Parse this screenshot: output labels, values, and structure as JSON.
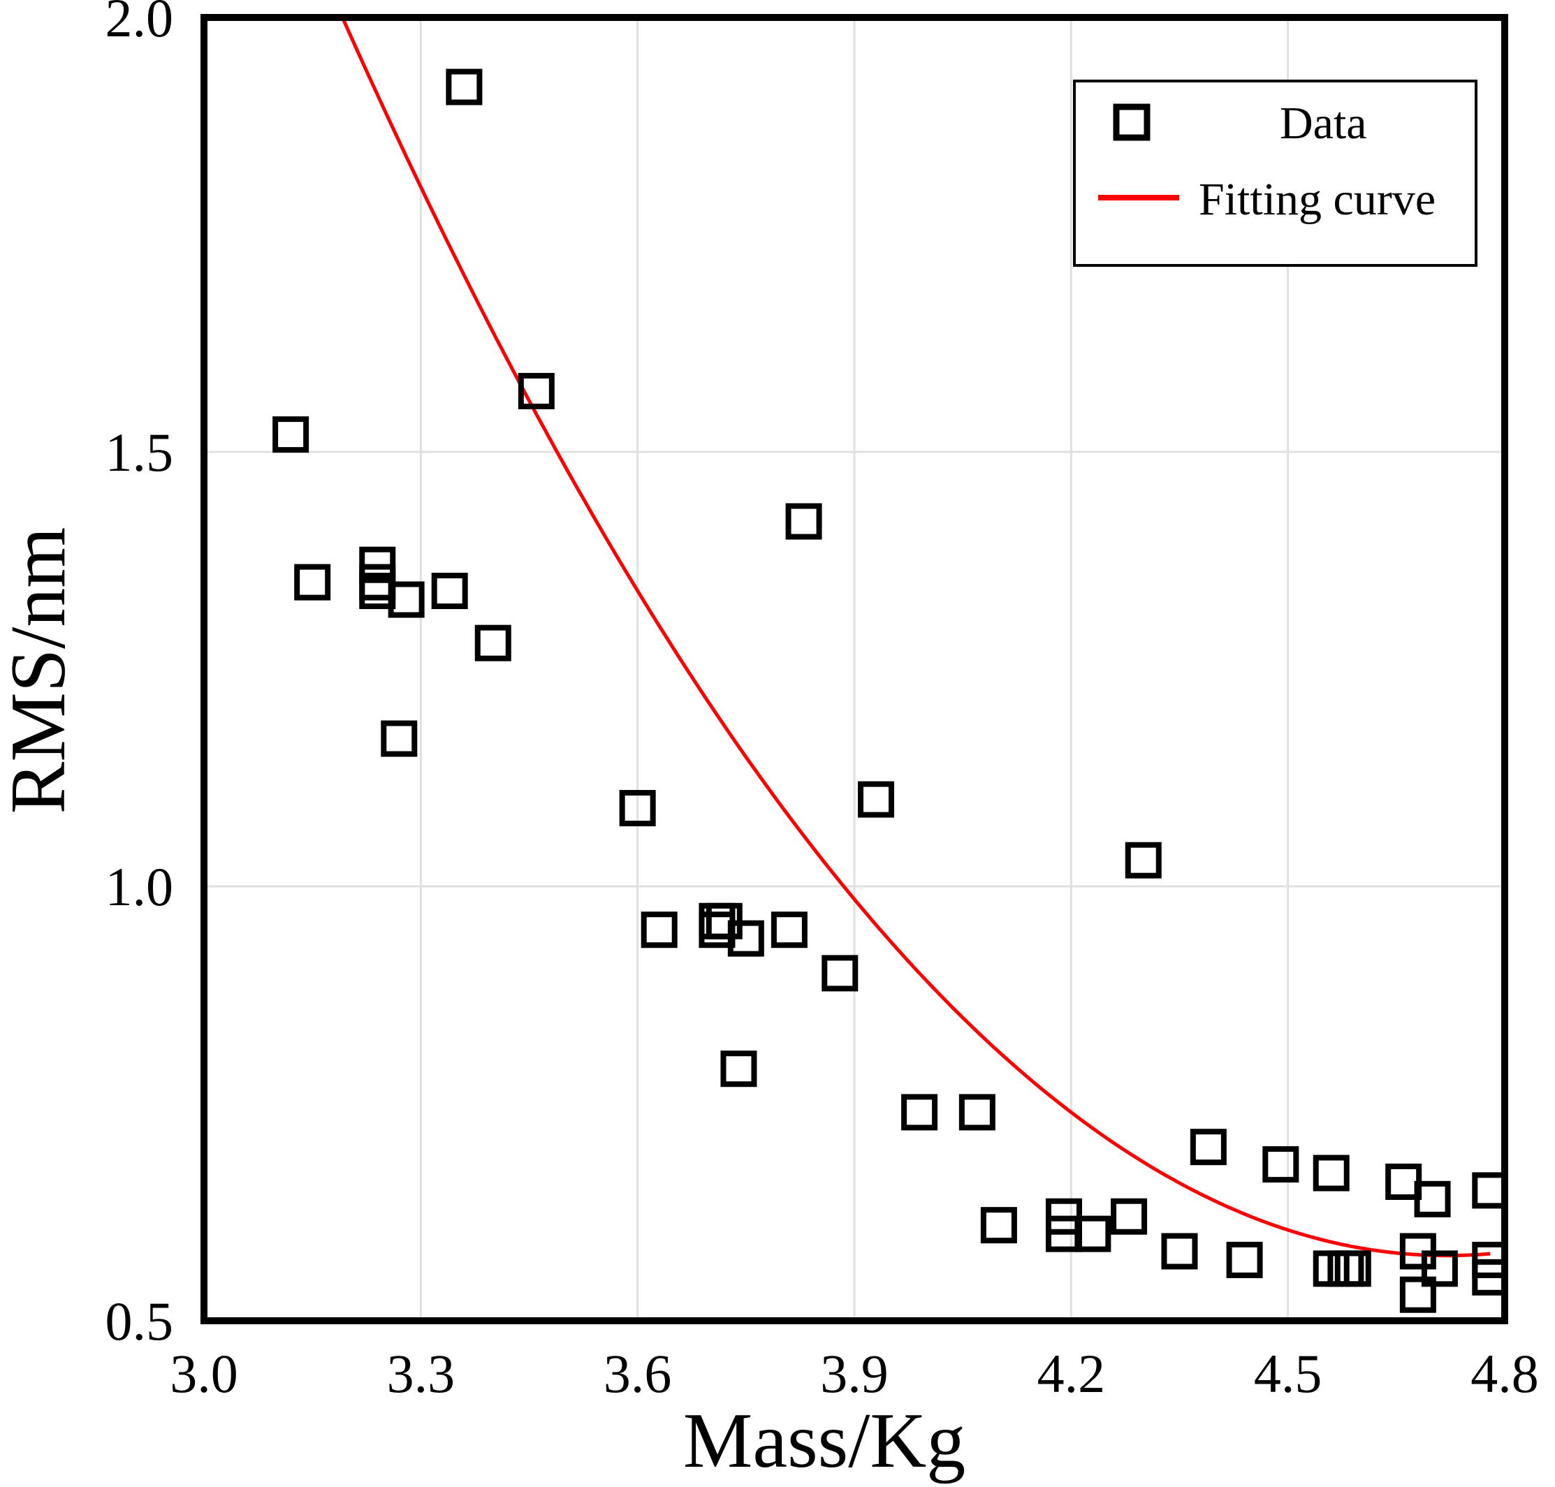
{
  "chart_data": {
    "type": "scatter",
    "title": "",
    "xlabel": "Mass/Kg",
    "ylabel": "RMS/nm",
    "xlim": [
      3.0,
      4.8
    ],
    "ylim": [
      0.5,
      2.0
    ],
    "xticks": [
      "3.0",
      "3.3",
      "3.6",
      "3.9",
      "4.2",
      "4.5",
      "4.8"
    ],
    "yticks": [
      "0.5",
      "1.0",
      "1.5",
      "2.0"
    ],
    "grid": true,
    "legend_position": "top-right",
    "legend": {
      "data_label": "Data",
      "fit_label": "Fitting curve"
    },
    "colors": {
      "data": "#000000",
      "fit": "#ff0000",
      "grid": "#e0e0e0"
    },
    "series": [
      {
        "name": "Data",
        "kind": "scatter",
        "marker": "hollow-square",
        "x": [
          3.12,
          3.15,
          3.24,
          3.24,
          3.24,
          3.27,
          3.28,
          3.34,
          3.36,
          3.4,
          3.46,
          3.6,
          3.63,
          3.71,
          3.71,
          3.72,
          3.74,
          3.75,
          3.81,
          3.83,
          3.88,
          3.93,
          3.99,
          4.07,
          4.1,
          4.19,
          4.19,
          4.23,
          4.28,
          4.3,
          4.35,
          4.39,
          4.44,
          4.49,
          4.56,
          4.56,
          4.58,
          4.59,
          4.66,
          4.68,
          4.68,
          4.7,
          4.71,
          4.78,
          4.78,
          4.78
        ],
        "y": [
          1.52,
          1.35,
          1.37,
          1.35,
          1.34,
          1.17,
          1.33,
          1.34,
          1.92,
          1.28,
          1.57,
          1.09,
          0.95,
          0.96,
          0.95,
          0.96,
          0.79,
          0.94,
          0.95,
          1.42,
          0.9,
          1.1,
          0.74,
          0.74,
          0.61,
          0.62,
          0.6,
          0.6,
          0.62,
          1.03,
          0.58,
          0.7,
          0.57,
          0.68,
          0.56,
          0.67,
          0.56,
          0.56,
          0.66,
          0.58,
          0.53,
          0.64,
          0.56,
          0.57,
          0.55,
          0.65
        ]
      },
      {
        "name": "Fitting curve",
        "kind": "line",
        "model": "quadratic",
        "x_range": [
          3.13,
          4.78
        ],
        "coefficients": {
          "a": 0.61,
          "vertex_x": 4.72,
          "vertex_y": 0.575
        }
      }
    ]
  }
}
